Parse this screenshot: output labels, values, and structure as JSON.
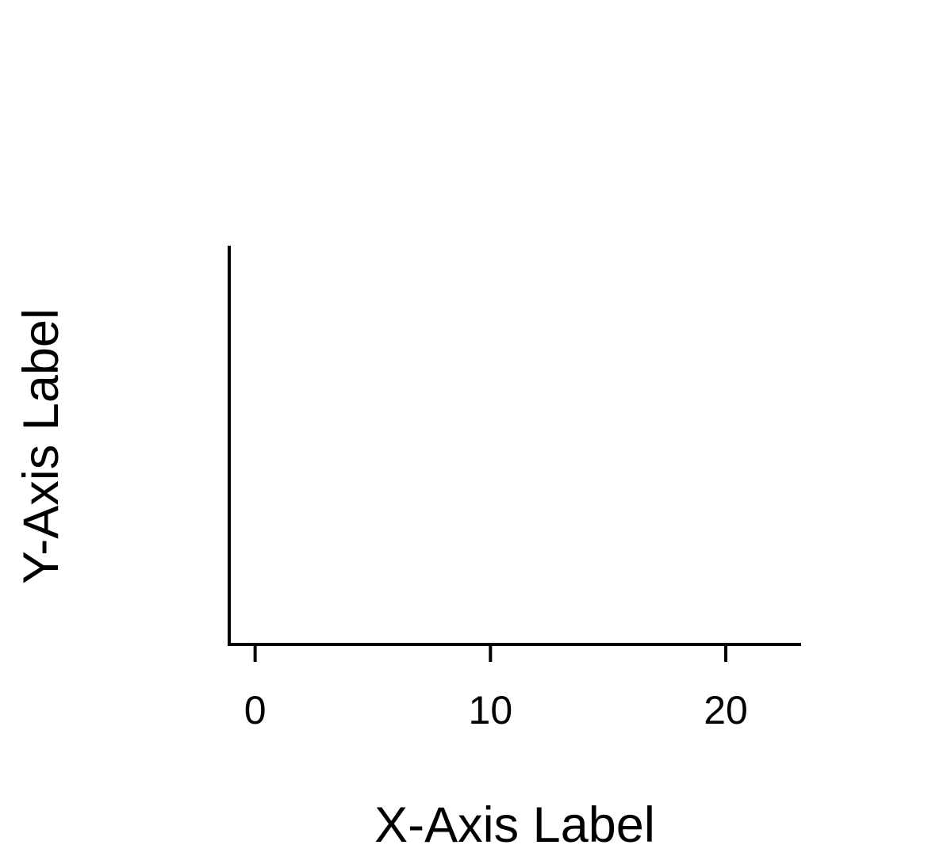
{
  "chart_data": {
    "type": "scatter",
    "title": "",
    "xlabel": "X-Axis Label",
    "ylabel": "Y-Axis Label",
    "xlim": [
      -1.1,
      23.2
    ],
    "xticks": [
      0,
      10,
      20
    ],
    "xtick_labels": [
      "0",
      "10",
      "20"
    ],
    "ylim": [
      0,
      1
    ],
    "yticks": [],
    "grid": false,
    "legend": null,
    "series": []
  }
}
